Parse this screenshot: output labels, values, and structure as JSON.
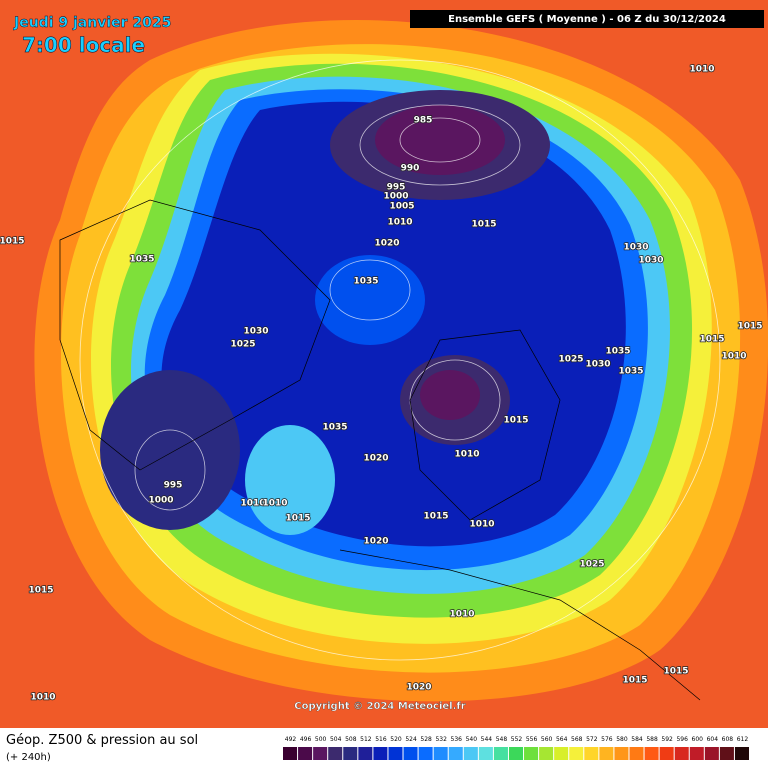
{
  "header": {
    "date": "Jeudi 9 janvier 2025",
    "time": "7:00 locale",
    "run": "Ensemble GEFS  ( Moyenne )  -  06 Z du 30/12/2024"
  },
  "copyright": "Copyright © 2024 Meteociel.fr",
  "footer": {
    "title": "Géop. Z500 & pression au sol",
    "lead": "(+ 240h)"
  },
  "isobar_labels": [
    "1010",
    "985",
    "990",
    "995",
    "1000",
    "1005",
    "1010",
    "1015",
    "1020",
    "1015",
    "1035",
    "1030",
    "1030",
    "1035",
    "1030",
    "1025",
    "1015",
    "1015",
    "1010",
    "1035",
    "1025",
    "1030",
    "1035",
    "1015",
    "1035",
    "1020",
    "1010",
    "995",
    "1000",
    "1010",
    "1010",
    "1015",
    "1015",
    "1010",
    "1020",
    "1025",
    "1015",
    "1010",
    "1015",
    "1015",
    "1020",
    "1010"
  ],
  "colorbar": {
    "ticks": [
      492,
      496,
      500,
      504,
      508,
      512,
      516,
      520,
      524,
      528,
      532,
      536,
      540,
      544,
      548,
      552,
      556,
      560,
      564,
      568,
      572,
      576,
      580,
      584,
      588,
      592,
      596,
      600,
      604,
      608,
      612
    ],
    "colors": [
      "#3a0030",
      "#4b0a4a",
      "#5a1660",
      "#3c2a6e",
      "#2a2a80",
      "#1f1f99",
      "#0a1fb8",
      "#0033d6",
      "#0050ee",
      "#0a6cff",
      "#1f8cff",
      "#35aaff",
      "#4cc8f5",
      "#5ee0e0",
      "#46e0a0",
      "#3cd85a",
      "#6ee03c",
      "#a6e632",
      "#d8ef2a",
      "#f5f03a",
      "#ffd52a",
      "#ffb420",
      "#ff9618",
      "#ff7a14",
      "#ff5a14",
      "#f03c14",
      "#d8281e",
      "#c01c28",
      "#9a1428",
      "#601018",
      "#200808"
    ]
  }
}
